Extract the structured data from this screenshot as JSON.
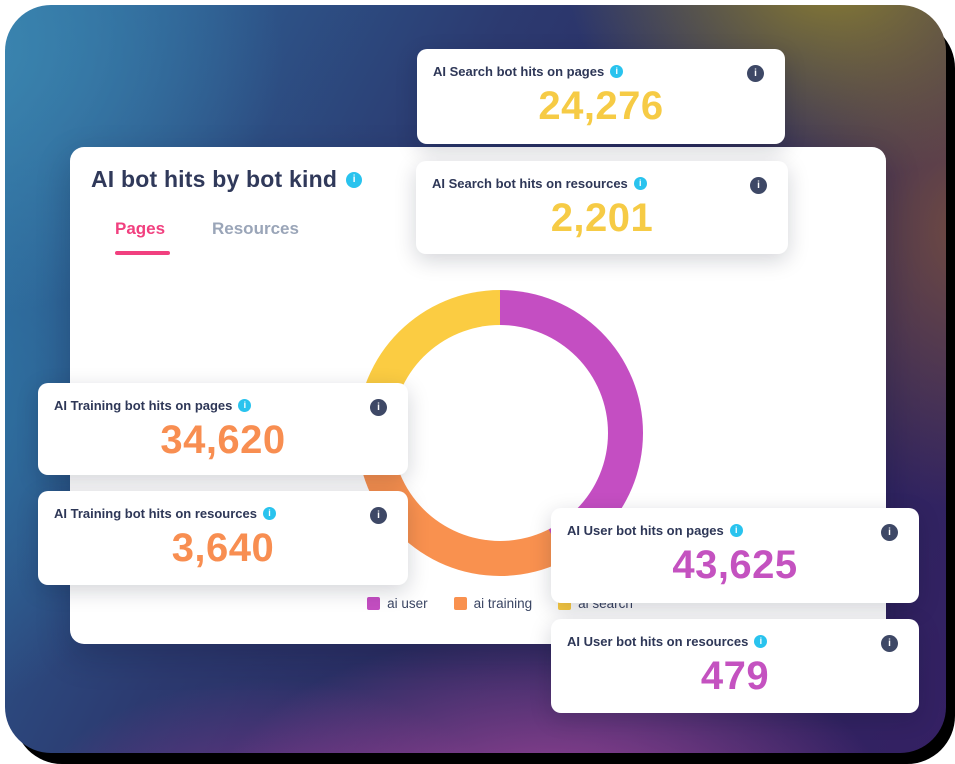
{
  "colors": {
    "info_badge_cyan": "#29c3ee",
    "info_button_navy": "#3e4866",
    "tab_active_pink": "#f1407f",
    "tab_inactive_gray": "#9aa5b8",
    "value_yellow": "#f6cb45",
    "value_orange": "#f88e51",
    "value_magenta": "#c452c0",
    "title_navy": "#30395a"
  },
  "main_card": {
    "title": "AI bot hits by bot kind",
    "tabs": [
      {
        "label": "Pages",
        "active": true
      },
      {
        "label": "Resources",
        "active": false
      }
    ]
  },
  "stat_cards": [
    {
      "label": "AI Search bot hits on pages",
      "value": "24,276",
      "color": "#f6cb45"
    },
    {
      "label": "AI Search bot hits on resources",
      "value": "2,201",
      "color": "#f6cb45"
    },
    {
      "label": "AI Training bot hits on pages",
      "value": "34,620",
      "color": "#f88e51"
    },
    {
      "label": "AI Training bot hits on resources",
      "value": "3,640",
      "color": "#f88e51"
    },
    {
      "label": "AI User bot hits on pages",
      "value": "43,625",
      "color": "#c452c0"
    },
    {
      "label": "AI User bot hits on resources",
      "value": "479",
      "color": "#c452c0"
    }
  ],
  "chart_data": {
    "type": "pie",
    "variant": "donut",
    "title": "AI bot hits by bot kind",
    "active_tab": "Pages",
    "categories": [
      "ai user",
      "ai training",
      "ai search"
    ],
    "values": [
      43625,
      34620,
      24276
    ],
    "percentages": [
      42.6,
      33.8,
      23.7
    ],
    "colors": [
      "#c44ec2",
      "#f9914f",
      "#fbcc42"
    ],
    "start_angle_deg": 0,
    "direction": "clockwise",
    "legend_position": "bottom"
  }
}
